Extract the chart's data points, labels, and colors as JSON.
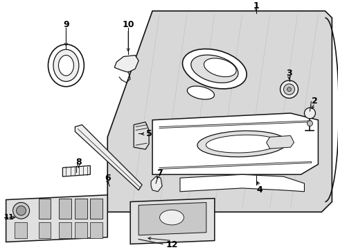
{
  "bg_color": "#ffffff",
  "fig_width": 4.89,
  "fig_height": 3.6,
  "dpi": 100,
  "line_color": "#111111",
  "door_fill": "#d8d8d8",
  "part_fill": "#eeeeee",
  "part_fill2": "#e0e0e0",
  "white": "#ffffff"
}
